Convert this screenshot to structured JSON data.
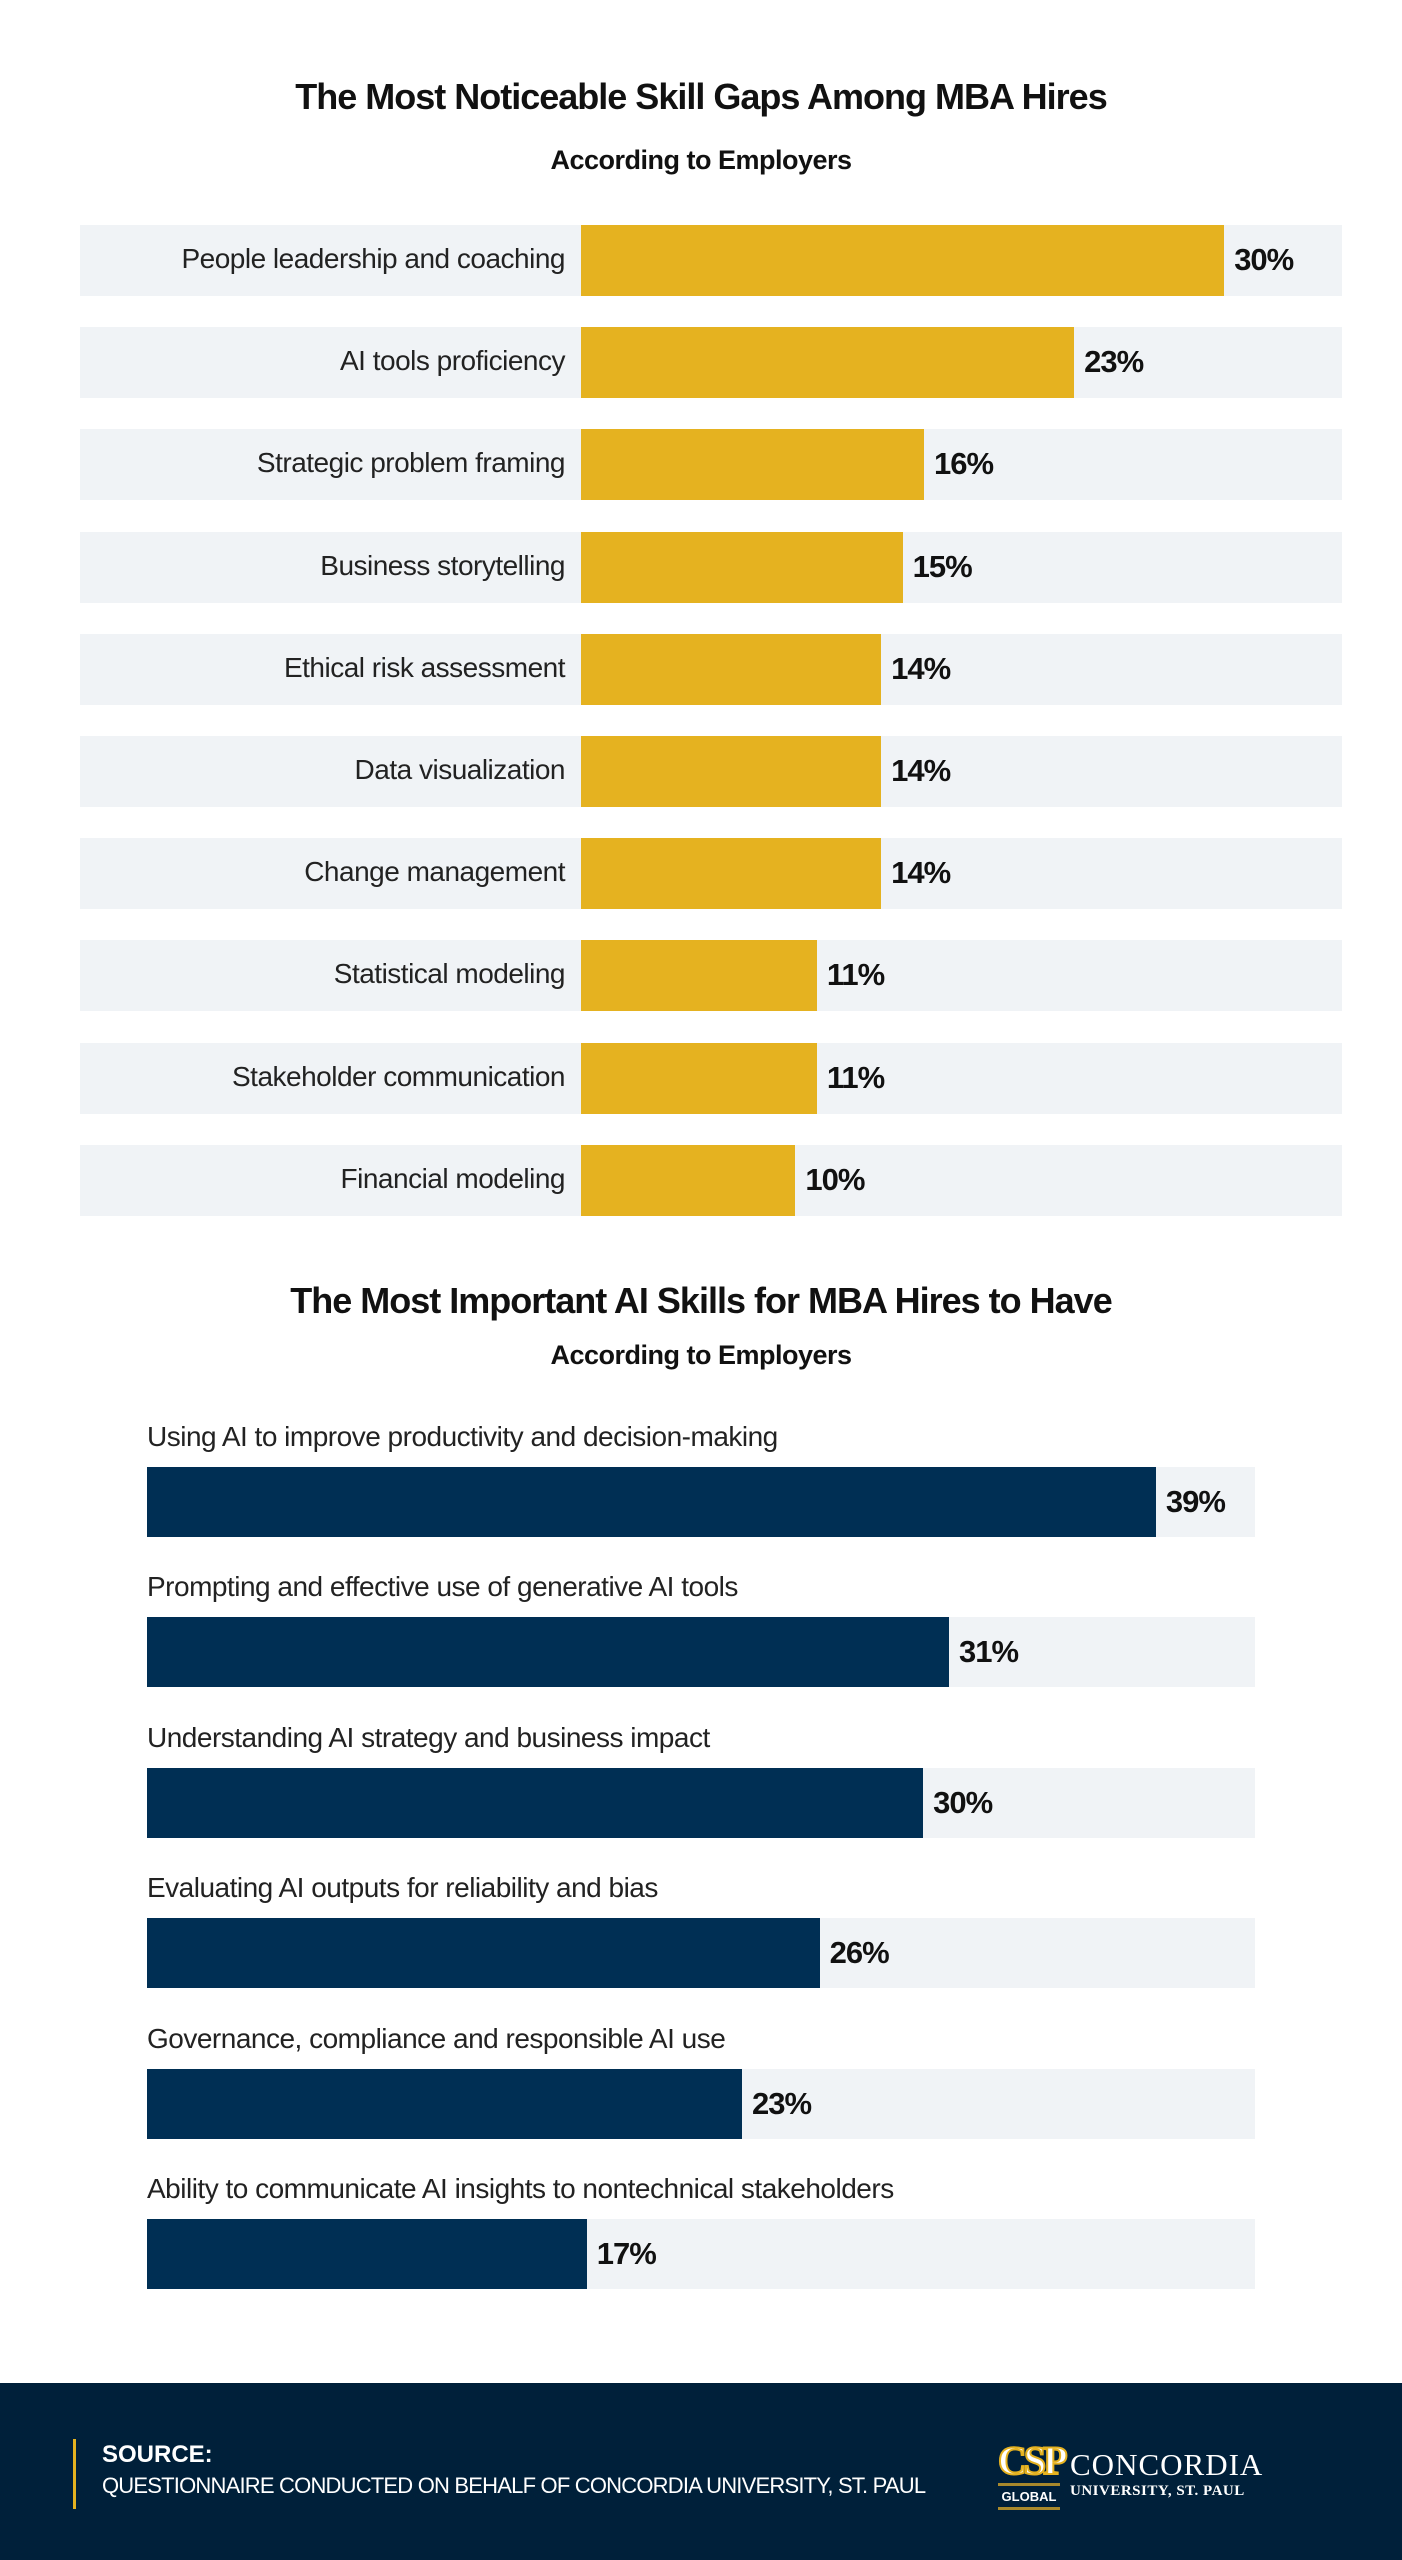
{
  "chart_data": [
    {
      "type": "bar",
      "orientation": "horizontal",
      "title": "The Most Noticeable Skill Gaps Among MBA Hires",
      "subtitle": "According to Employers",
      "categories": [
        "People leadership and coaching",
        "AI tools proficiency",
        "Strategic problem framing",
        "Business storytelling",
        "Ethical risk assessment",
        "Data visualization",
        "Change management",
        "Statistical modeling",
        "Stakeholder communication",
        "Financial modeling"
      ],
      "values": [
        30,
        23,
        16,
        15,
        14,
        14,
        14,
        11,
        11,
        10
      ],
      "value_labels": [
        "30%",
        "23%",
        "16%",
        "15%",
        "14%",
        "14%",
        "14%",
        "11%",
        "11%",
        "10%"
      ],
      "unit": "%",
      "color": "#e5b220",
      "track_color": "#f0f3f6"
    },
    {
      "type": "bar",
      "orientation": "horizontal",
      "title": "The Most Important AI Skills for MBA Hires to Have",
      "subtitle": "According to Employers",
      "categories": [
        "Using AI to improve productivity and decision-making",
        "Prompting and effective use of generative AI tools",
        "Understanding AI strategy and business impact",
        "Evaluating AI outputs for reliability and bias",
        "Governance, compliance and responsible AI use",
        "Ability to communicate AI insights to nontechnical stakeholders"
      ],
      "values": [
        39,
        31,
        30,
        26,
        23,
        17
      ],
      "value_labels": [
        "39%",
        "31%",
        "30%",
        "26%",
        "23%",
        "17%"
      ],
      "unit": "%",
      "color": "#002f54",
      "track_color": "#f0f3f6"
    }
  ],
  "footer": {
    "source_heading": "SOURCE:",
    "source_text": "QUESTIONNAIRE CONDUCTED ON BEHALF OF CONCORDIA UNIVERSITY, ST. PAUL",
    "logo": {
      "mark": "CSP",
      "mark_sub": "GLOBAL",
      "name": "CONCORDIA",
      "sub": "UNIVERSITY, ST. PAUL"
    },
    "background": "#00203a",
    "accent": "#e5b220"
  }
}
